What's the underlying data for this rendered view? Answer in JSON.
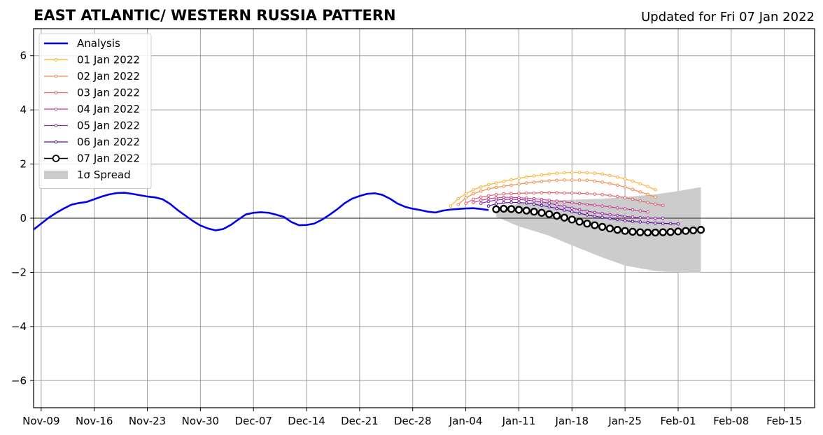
{
  "chart_data": {
    "type": "line",
    "title": "EAST ATLANTIC/ WESTERN RUSSIA PATTERN",
    "subtitle": "Updated for Fri 07 Jan 2022",
    "xlabel": "",
    "ylabel": "",
    "ylim": [
      -7,
      7
    ],
    "xlim": [
      "2021-11-08",
      "2022-02-19"
    ],
    "yticks": [
      -6,
      -4,
      -2,
      0,
      2,
      4,
      6
    ],
    "ytick_labels": [
      "−6",
      "−4",
      "−2",
      "0",
      "2",
      "4",
      "6"
    ],
    "xticks": [
      "2021-11-09",
      "2021-11-16",
      "2021-11-23",
      "2021-11-30",
      "2021-12-07",
      "2021-12-14",
      "2021-12-21",
      "2021-12-28",
      "2022-01-04",
      "2022-01-11",
      "2022-01-18",
      "2022-01-25",
      "2022-02-01",
      "2022-02-08",
      "2022-02-15"
    ],
    "xtick_labels": [
      "Nov-09",
      "Nov-16",
      "Nov-23",
      "Nov-30",
      "Dec-07",
      "Dec-14",
      "Dec-21",
      "Dec-28",
      "Jan-04",
      "Jan-11",
      "Jan-18",
      "Jan-25",
      "Feb-01",
      "Feb-08",
      "Feb-15"
    ],
    "grid": true,
    "legend_placement": "top-left",
    "analysis": {
      "name": "Analysis",
      "color": "#0000ee",
      "x": [
        "2021-11-08",
        "2021-11-09",
        "2021-11-10",
        "2021-11-11",
        "2021-11-12",
        "2021-11-13",
        "2021-11-14",
        "2021-11-15",
        "2021-11-16",
        "2021-11-17",
        "2021-11-18",
        "2021-11-19",
        "2021-11-20",
        "2021-11-21",
        "2021-11-22",
        "2021-11-23",
        "2021-11-24",
        "2021-11-25",
        "2021-11-26",
        "2021-11-27",
        "2021-11-28",
        "2021-11-29",
        "2021-11-30",
        "2021-12-01",
        "2021-12-02",
        "2021-12-03",
        "2021-12-04",
        "2021-12-05",
        "2021-12-06",
        "2021-12-07",
        "2021-12-08",
        "2021-12-09",
        "2021-12-10",
        "2021-12-11",
        "2021-12-12",
        "2021-12-13",
        "2021-12-14",
        "2021-12-15",
        "2021-12-16",
        "2021-12-17",
        "2021-12-18",
        "2021-12-19",
        "2021-12-20",
        "2021-12-21",
        "2021-12-22",
        "2021-12-23",
        "2021-12-24",
        "2021-12-25",
        "2021-12-26",
        "2021-12-27",
        "2021-12-28",
        "2021-12-29",
        "2021-12-30",
        "2021-12-31",
        "2022-01-01",
        "2022-01-02",
        "2022-01-03",
        "2022-01-04",
        "2022-01-05",
        "2022-01-06",
        "2022-01-07"
      ],
      "values": [
        -0.42,
        -0.2,
        0.02,
        0.2,
        0.36,
        0.5,
        0.56,
        0.6,
        0.7,
        0.8,
        0.88,
        0.93,
        0.94,
        0.9,
        0.85,
        0.8,
        0.77,
        0.7,
        0.53,
        0.3,
        0.1,
        -0.1,
        -0.27,
        -0.38,
        -0.45,
        -0.4,
        -0.25,
        -0.05,
        0.14,
        0.2,
        0.22,
        0.2,
        0.13,
        0.05,
        -0.14,
        -0.26,
        -0.25,
        -0.2,
        -0.06,
        0.12,
        0.32,
        0.55,
        0.72,
        0.82,
        0.9,
        0.92,
        0.86,
        0.72,
        0.54,
        0.42,
        0.35,
        0.3,
        0.24,
        0.21,
        0.28,
        0.32,
        0.34,
        0.36,
        0.37,
        0.34,
        0.3
      ]
    },
    "forecasts": [
      {
        "name": "01 Jan 2022",
        "color": "#f9b233",
        "marker": "small",
        "start": "2022-01-02",
        "values": [
          0.45,
          0.72,
          0.9,
          1.05,
          1.15,
          1.24,
          1.3,
          1.36,
          1.42,
          1.47,
          1.52,
          1.56,
          1.6,
          1.63,
          1.66,
          1.68,
          1.69,
          1.69,
          1.68,
          1.66,
          1.63,
          1.58,
          1.52,
          1.45,
          1.37,
          1.27,
          1.17,
          1.05
        ]
      },
      {
        "name": "02 Jan 2022",
        "color": "#f28a4a",
        "marker": "small",
        "start": "2022-01-03",
        "values": [
          0.5,
          0.75,
          0.9,
          1.0,
          1.08,
          1.14,
          1.18,
          1.22,
          1.26,
          1.3,
          1.33,
          1.36,
          1.38,
          1.4,
          1.41,
          1.41,
          1.41,
          1.4,
          1.37,
          1.33,
          1.28,
          1.22,
          1.15,
          1.06,
          0.97,
          0.88,
          0.78
        ]
      },
      {
        "name": "03 Jan 2022",
        "color": "#e0606a",
        "marker": "small",
        "start": "2022-01-04",
        "values": [
          0.55,
          0.7,
          0.78,
          0.83,
          0.87,
          0.9,
          0.91,
          0.92,
          0.93,
          0.93,
          0.94,
          0.94,
          0.94,
          0.93,
          0.93,
          0.92,
          0.91,
          0.89,
          0.87,
          0.84,
          0.8,
          0.76,
          0.7,
          0.64,
          0.58,
          0.52,
          0.47
        ]
      },
      {
        "name": "04 Jan 2022",
        "color": "#c3408a",
        "marker": "small",
        "start": "2022-01-05",
        "values": [
          0.58,
          0.66,
          0.72,
          0.75,
          0.77,
          0.77,
          0.76,
          0.74,
          0.72,
          0.69,
          0.66,
          0.63,
          0.6,
          0.57,
          0.54,
          0.51,
          0.48,
          0.45,
          0.42,
          0.38,
          0.35,
          0.31,
          0.27,
          0.23
        ]
      },
      {
        "name": "05 Jan 2022",
        "color": "#9a2aa5",
        "marker": "small",
        "start": "2022-01-06",
        "values": [
          0.55,
          0.62,
          0.67,
          0.69,
          0.7,
          0.69,
          0.67,
          0.64,
          0.6,
          0.55,
          0.49,
          0.43,
          0.37,
          0.31,
          0.26,
          0.21,
          0.17,
          0.13,
          0.1,
          0.07,
          0.04,
          0.02,
          0.01,
          0.0,
          0.0
        ]
      },
      {
        "name": "06 Jan 2022",
        "color": "#5a0d9e",
        "marker": "small",
        "start": "2022-01-07",
        "values": [
          0.45,
          0.53,
          0.57,
          0.58,
          0.58,
          0.56,
          0.52,
          0.47,
          0.42,
          0.36,
          0.3,
          0.24,
          0.18,
          0.12,
          0.07,
          0.03,
          -0.01,
          -0.05,
          -0.09,
          -0.12,
          -0.14,
          -0.16,
          -0.18,
          -0.19,
          -0.2,
          -0.21
        ]
      },
      {
        "name": "07 Jan 2022",
        "color": "#000000",
        "marker": "large",
        "start": "2022-01-08",
        "values": [
          0.33,
          0.35,
          0.34,
          0.31,
          0.28,
          0.24,
          0.2,
          0.15,
          0.09,
          0.02,
          -0.05,
          -0.13,
          -0.2,
          -0.26,
          -0.32,
          -0.38,
          -0.43,
          -0.47,
          -0.5,
          -0.52,
          -0.53,
          -0.53,
          -0.52,
          -0.51,
          -0.49,
          -0.47,
          -0.45,
          -0.43
        ]
      }
    ],
    "spread": {
      "name": "1σ Spread",
      "color": "#cccccc",
      "x": [
        "2022-01-08",
        "2022-01-11",
        "2022-01-15",
        "2022-01-18",
        "2022-01-22",
        "2022-01-25",
        "2022-01-29",
        "2022-02-01",
        "2022-02-04"
      ],
      "upper": [
        0.3,
        0.55,
        0.65,
        0.68,
        0.72,
        0.78,
        0.88,
        1.0,
        1.15
      ],
      "lower": [
        0.05,
        -0.3,
        -0.65,
        -1.0,
        -1.45,
        -1.75,
        -1.95,
        -2.0,
        -2.02
      ]
    },
    "legend": [
      "Analysis",
      "01 Jan 2022",
      "02 Jan 2022",
      "03 Jan 2022",
      "04 Jan 2022",
      "05 Jan 2022",
      "06 Jan 2022",
      "07 Jan 2022",
      "1σ Spread"
    ]
  }
}
